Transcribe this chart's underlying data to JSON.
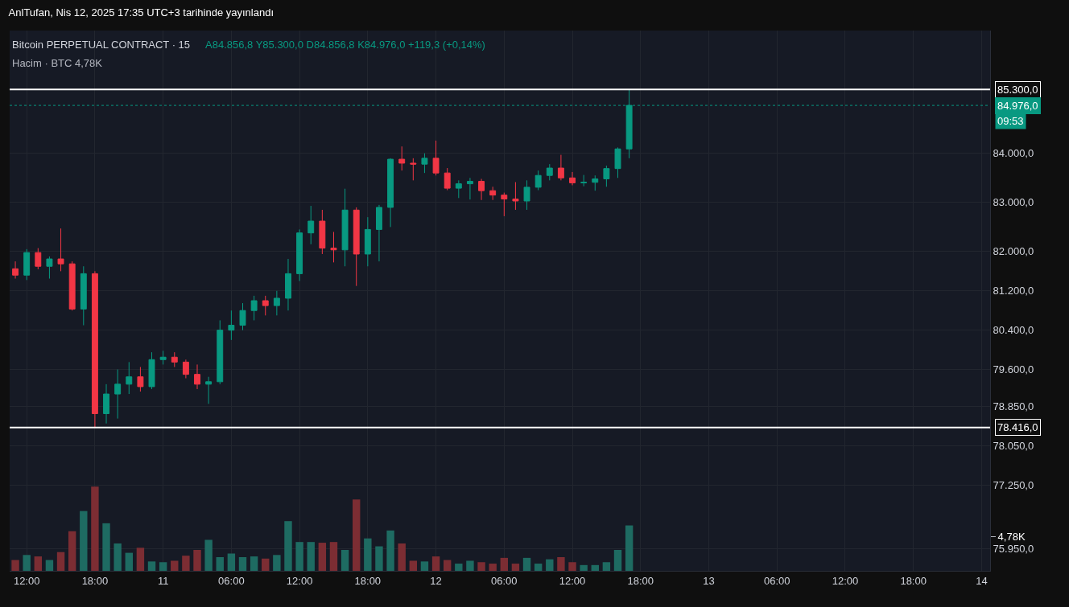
{
  "chart_data": {
    "type": "candlestick",
    "title": "AnlTufan, Nis 12, 2025 17:35 UTC+3 tarihinde yayınlandı",
    "subtitle": "Bitcoin PERPETUAL CONTRACT · 15",
    "annotations": [
      "A84.856,8 Y85.300,0 D84.856,8 K84.976,0 +119,3 (+0,14%)",
      "Hacim · BTC 4,78K",
      "09:53"
    ],
    "x": [
      "2025-04-10T11:00",
      "2025-04-10T12:00",
      "2025-04-10T13:00",
      "2025-04-10T14:00",
      "2025-04-10T15:00",
      "2025-04-10T16:00",
      "2025-04-10T17:00",
      "2025-04-10T18:00",
      "2025-04-10T19:00",
      "2025-04-10T20:00",
      "2025-04-10T21:00",
      "2025-04-10T22:00",
      "2025-04-10T23:00",
      "2025-04-11T00:00",
      "2025-04-11T01:00",
      "2025-04-11T02:00",
      "2025-04-11T03:00",
      "2025-04-11T04:00",
      "2025-04-11T05:00",
      "2025-04-11T06:00",
      "2025-04-11T07:00",
      "2025-04-11T08:00",
      "2025-04-11T09:00",
      "2025-04-11T10:00",
      "2025-04-11T11:00",
      "2025-04-11T12:00",
      "2025-04-11T13:00",
      "2025-04-11T14:00",
      "2025-04-11T15:00",
      "2025-04-11T16:00",
      "2025-04-11T17:00",
      "2025-04-11T18:00",
      "2025-04-11T19:00",
      "2025-04-11T20:00",
      "2025-04-11T21:00",
      "2025-04-11T22:00",
      "2025-04-11T23:00",
      "2025-04-12T00:00",
      "2025-04-12T01:00",
      "2025-04-12T02:00",
      "2025-04-12T03:00",
      "2025-04-12T04:00",
      "2025-04-12T05:00",
      "2025-04-12T06:00",
      "2025-04-12T07:00",
      "2025-04-12T08:00",
      "2025-04-12T09:00",
      "2025-04-12T10:00",
      "2025-04-12T11:00",
      "2025-04-12T12:00",
      "2025-04-12T13:00",
      "2025-04-12T14:00",
      "2025-04-12T15:00",
      "2025-04-12T16:00",
      "2025-04-12T17:00"
    ],
    "series": [
      {
        "colors": [
          "#f23645",
          "#089981",
          "#f23645",
          "#089981",
          "#f23645",
          "#f23645",
          "#089981",
          "#f23645",
          "#089981",
          "#089981",
          "#089981",
          "#f23645",
          "#089981",
          "#089981",
          "#f23645",
          "#f23645",
          "#f23645",
          "#089981",
          "#089981",
          "#089981",
          "#089981",
          "#089981",
          "#f23645",
          "#089981",
          "#089981",
          "#089981",
          "#089981",
          "#f23645",
          "#f23645",
          "#089981",
          "#f23645",
          "#089981",
          "#089981",
          "#089981",
          "#f23645",
          "#f23645",
          "#089981",
          "#f23645",
          "#f23645",
          "#089981",
          "#089981",
          "#f23645",
          "#f23645",
          "#f23645",
          "#f23645",
          "#089981",
          "#089981",
          "#089981",
          "#f23645",
          "#f23645",
          "#089981",
          "#089981",
          "#089981",
          "#089981",
          "#089981"
        ],
        "ohlc": [
          [
            81650,
            81800,
            81450,
            81520
          ],
          [
            81520,
            82050,
            81420,
            81980
          ],
          [
            81980,
            82070,
            81640,
            81700
          ],
          [
            81700,
            81900,
            81450,
            81850
          ],
          [
            81850,
            82470,
            81600,
            81750
          ],
          [
            81750,
            81800,
            80800,
            80830
          ],
          [
            80830,
            81700,
            80500,
            81550
          ],
          [
            81550,
            81600,
            78416,
            78700
          ],
          [
            78700,
            79300,
            78500,
            79100
          ],
          [
            79100,
            79600,
            78600,
            79300
          ],
          [
            79300,
            79750,
            79100,
            79450
          ],
          [
            79450,
            79650,
            79150,
            79250
          ],
          [
            79250,
            79950,
            79200,
            79800
          ],
          [
            79800,
            79980,
            79700,
            79850
          ],
          [
            79850,
            79950,
            79650,
            79750
          ],
          [
            79750,
            79800,
            79420,
            79500
          ],
          [
            79500,
            79700,
            79200,
            79300
          ],
          [
            79300,
            79450,
            78900,
            79350
          ],
          [
            79350,
            80600,
            79300,
            80400
          ],
          [
            80400,
            80800,
            80200,
            80500
          ],
          [
            80500,
            80950,
            80400,
            80800
          ],
          [
            80800,
            81100,
            80600,
            81000
          ],
          [
            81000,
            81100,
            80700,
            80900
          ],
          [
            80900,
            81200,
            80700,
            81050
          ],
          [
            81050,
            81850,
            80800,
            81550
          ],
          [
            81550,
            82450,
            81400,
            82380
          ],
          [
            82380,
            82930,
            82150,
            82620
          ],
          [
            82620,
            82850,
            81950,
            82070
          ],
          [
            82070,
            82400,
            81780,
            82035
          ],
          [
            82035,
            83280,
            81700,
            82845
          ],
          [
            82845,
            82900,
            81300,
            81950
          ],
          [
            81950,
            82700,
            81700,
            82450
          ],
          [
            82450,
            82950,
            81800,
            82900
          ],
          [
            82900,
            83900,
            82500,
            83880
          ],
          [
            83880,
            84140,
            83650,
            83800
          ],
          [
            83800,
            83900,
            83450,
            83780
          ],
          [
            83780,
            84000,
            83600,
            83900
          ],
          [
            83900,
            84260,
            83550,
            83600
          ],
          [
            83600,
            83700,
            83250,
            83290
          ],
          [
            83290,
            83450,
            83090,
            83380
          ],
          [
            83380,
            83500,
            83060,
            83430
          ],
          [
            83430,
            83480,
            83050,
            83240
          ],
          [
            83240,
            83320,
            83050,
            83150
          ],
          [
            83150,
            83200,
            82720,
            83070
          ],
          [
            83070,
            83414,
            82850,
            83030
          ],
          [
            83030,
            83450,
            82850,
            83310
          ],
          [
            83310,
            83650,
            83250,
            83550
          ],
          [
            83550,
            83780,
            83450,
            83700
          ],
          [
            83700,
            83970,
            83450,
            83500
          ],
          [
            83500,
            83620,
            83350,
            83400
          ],
          [
            83400,
            83560,
            83330,
            83410
          ],
          [
            83410,
            83550,
            83240,
            83480
          ],
          [
            83480,
            83750,
            83320,
            83690
          ],
          [
            83690,
            84120,
            83500,
            84090
          ],
          [
            84090,
            85300,
            83900,
            84976
          ]
        ]
      },
      {
        "type": "bar",
        "axis": "y2",
        "values": [
          1.5,
          2.2,
          2.0,
          1.5,
          2.6,
          5.5,
          8.3,
          11.7,
          6.6,
          3.8,
          2.5,
          3.2,
          1.3,
          1.2,
          1.4,
          2.1,
          2.9,
          4.3,
          1.9,
          2.4,
          1.9,
          2.0,
          1.7,
          2.2,
          6.9,
          4.0,
          4.0,
          3.9,
          4.0,
          2.9,
          9.9,
          4.5,
          3.4,
          5.6,
          3.8,
          1.4,
          1.3,
          2.0,
          1.5,
          1.0,
          1.4,
          1.2,
          1.0,
          1.8,
          1.0,
          1.8,
          1.0,
          1.6,
          1.9,
          1.2,
          0.8,
          0.8,
          1.2,
          2.9,
          6.3
        ],
        "colors": [
          "#7c2d33",
          "#1e6b62",
          "#7c2d33",
          "#1e6b62",
          "#7c2d33",
          "#7c2d33",
          "#1e6b62",
          "#7c2d33",
          "#1e6b62",
          "#1e6b62",
          "#1e6b62",
          "#7c2d33",
          "#1e6b62",
          "#1e6b62",
          "#7c2d33",
          "#7c2d33",
          "#7c2d33",
          "#1e6b62",
          "#1e6b62",
          "#1e6b62",
          "#1e6b62",
          "#1e6b62",
          "#7c2d33",
          "#1e6b62",
          "#1e6b62",
          "#1e6b62",
          "#1e6b62",
          "#7c2d33",
          "#7c2d33",
          "#1e6b62",
          "#7c2d33",
          "#1e6b62",
          "#1e6b62",
          "#1e6b62",
          "#7c2d33",
          "#7c2d33",
          "#1e6b62",
          "#7c2d33",
          "#7c2d33",
          "#1e6b62",
          "#1e6b62",
          "#7c2d33",
          "#7c2d33",
          "#7c2d33",
          "#7c2d33",
          "#1e6b62",
          "#1e6b62",
          "#1e6b62",
          "#7c2d33",
          "#7c2d33",
          "#1e6b62",
          "#1e6b62",
          "#1e6b62",
          "#1e6b62",
          "#1e6b62"
        ]
      }
    ],
    "xlim": [
      "2025-04-10T10:30",
      "2025-04-14T00:45"
    ],
    "xticks": [
      {
        "value": "2025-04-10T12:00",
        "label": "12:00"
      },
      {
        "value": "2025-04-10T18:00",
        "label": "18:00"
      },
      {
        "value": "2025-04-11T00:00",
        "label": "11"
      },
      {
        "value": "2025-04-11T06:00",
        "label": "06:00"
      },
      {
        "value": "2025-04-11T12:00",
        "label": "12:00"
      },
      {
        "value": "2025-04-11T18:00",
        "label": "18:00"
      },
      {
        "value": "2025-04-12T00:00",
        "label": "12"
      },
      {
        "value": "2025-04-12T06:00",
        "label": "06:00"
      },
      {
        "value": "2025-04-12T12:00",
        "label": "12:00"
      },
      {
        "value": "2025-04-12T18:00",
        "label": "18:00"
      },
      {
        "value": "2025-04-13T00:00",
        "label": "13"
      },
      {
        "value": "2025-04-13T06:00",
        "label": "06:00"
      },
      {
        "value": "2025-04-13T12:00",
        "label": "12:00"
      },
      {
        "value": "2025-04-13T18:00",
        "label": "18:00"
      },
      {
        "value": "2025-04-14T00:00",
        "label": "14"
      }
    ],
    "ylim": [
      75500,
      86500
    ],
    "yticks": [
      {
        "value": 75950,
        "label": "75.950,0"
      },
      {
        "value": 77250,
        "label": "77.250,0"
      },
      {
        "value": 78050,
        "label": "78.050,0"
      },
      {
        "value": 78850,
        "label": "78.850,0"
      },
      {
        "value": 79600,
        "label": "79.600,0"
      },
      {
        "value": 80400,
        "label": "80.400,0"
      },
      {
        "value": 81200,
        "label": "81.200,0"
      },
      {
        "value": 82000,
        "label": "82.000,0"
      },
      {
        "value": 83000,
        "label": "83.000,0"
      },
      {
        "value": 84000,
        "label": "84.000,0"
      }
    ],
    "y2lim": [
      0,
      75
    ],
    "y2ticks": [
      {
        "value": 4.78,
        "label": "4,78K"
      }
    ],
    "ref_lines": [
      {
        "axis": "y",
        "value": 85300,
        "label": "85.300,0",
        "color": "#ffffff",
        "line_style": "solid"
      },
      {
        "axis": "y",
        "value": 84976,
        "label": "84.976,0",
        "color": "#089981",
        "line_style": "dotted"
      },
      {
        "axis": "y",
        "value": 78416,
        "label": "78.416,0",
        "color": "#ffffff",
        "line_style": "solid"
      }
    ],
    "grid": true
  }
}
